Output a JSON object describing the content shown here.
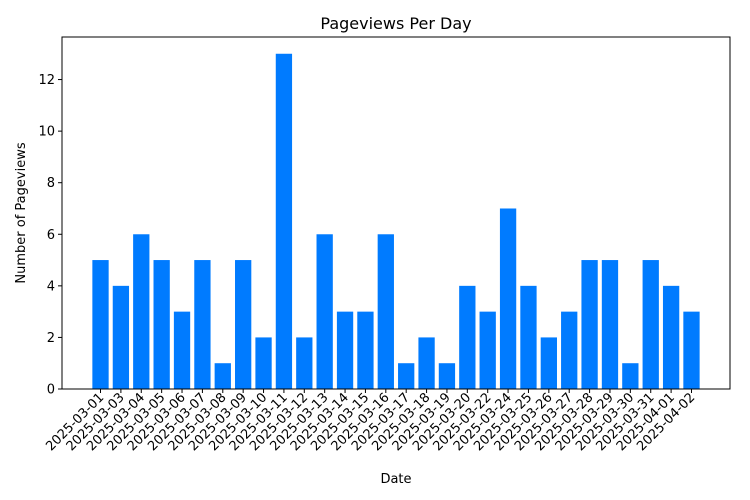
{
  "chart_data": {
    "type": "bar",
    "title": "Pageviews Per Day",
    "xlabel": "Date",
    "ylabel": "Number of Pageviews",
    "categories": [
      "2025-03-01",
      "2025-03-03",
      "2025-03-04",
      "2025-03-05",
      "2025-03-06",
      "2025-03-07",
      "2025-03-08",
      "2025-03-09",
      "2025-03-10",
      "2025-03-11",
      "2025-03-12",
      "2025-03-13",
      "2025-03-14",
      "2025-03-15",
      "2025-03-16",
      "2025-03-17",
      "2025-03-18",
      "2025-03-19",
      "2025-03-20",
      "2025-03-22",
      "2025-03-24",
      "2025-03-25",
      "2025-03-26",
      "2025-03-27",
      "2025-03-28",
      "2025-03-29",
      "2025-03-30",
      "2025-03-31",
      "2025-04-01",
      "2025-04-02"
    ],
    "values": [
      5,
      4,
      6,
      5,
      3,
      5,
      1,
      5,
      2,
      13,
      2,
      6,
      3,
      3,
      6,
      1,
      2,
      1,
      4,
      3,
      7,
      4,
      2,
      3,
      5,
      5,
      1,
      5,
      4,
      3
    ],
    "ylim": [
      0,
      13.65
    ],
    "yticks": [
      0,
      2,
      4,
      6,
      8,
      10,
      12
    ],
    "bar_color": "#007bff",
    "grid": false,
    "legend": "none"
  }
}
